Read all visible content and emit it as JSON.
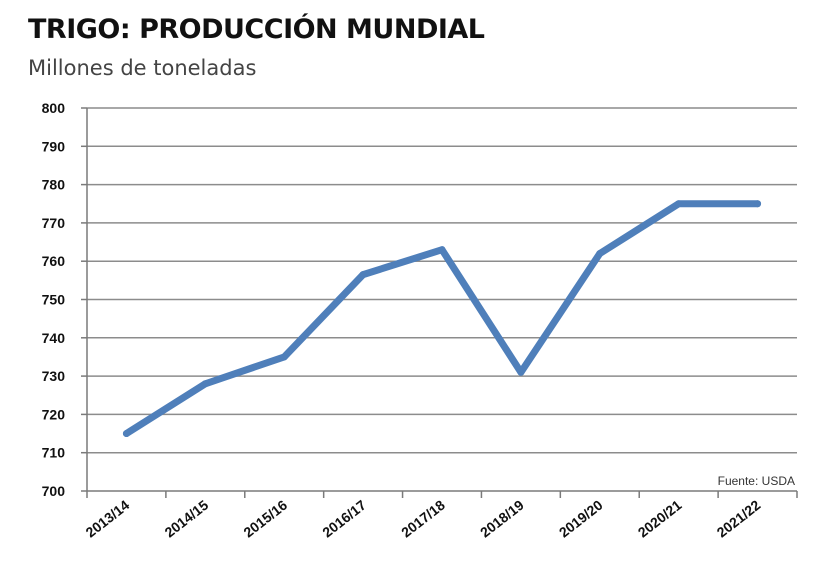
{
  "chart_data": {
    "type": "line",
    "title": "TRIGO: PRODUCCIÓN MUNDIAL",
    "subtitle": "Millones de toneladas",
    "categories": [
      "2013/14",
      "2014/15",
      "2015/16",
      "2016/17",
      "2017/18",
      "2018/19",
      "2019/20",
      "2020/21",
      "2021/22"
    ],
    "series": [
      {
        "values": [
          715,
          728,
          735,
          756.5,
          763,
          731,
          762,
          775,
          775
        ]
      }
    ],
    "ylim": [
      700,
      800
    ],
    "yticks": [
      700,
      710,
      720,
      730,
      740,
      750,
      760,
      770,
      780,
      790,
      800
    ],
    "grid": true,
    "source": "Fuente: USDA",
    "colors": {
      "line": "#4f7fba",
      "grid": "#8c8c8c",
      "axis": "#7a7a7a"
    }
  }
}
